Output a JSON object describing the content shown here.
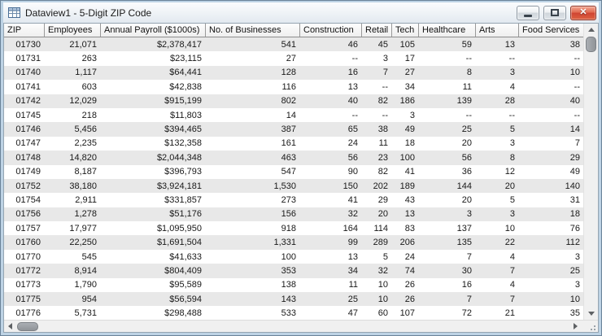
{
  "window": {
    "title": "Dataview1 - 5-Digit ZIP Code"
  },
  "table": {
    "columns": [
      "ZIP",
      "Employees",
      "Annual Payroll ($1000s)",
      "No. of Businesses",
      "Construction",
      "Retail",
      "Tech",
      "Healthcare",
      "Arts",
      "Food Services"
    ],
    "null_marker": "--",
    "rows": [
      [
        "01730",
        "21,071",
        "$2,378,417",
        "541",
        "46",
        "45",
        "105",
        "59",
        "13",
        "38"
      ],
      [
        "01731",
        "263",
        "$23,115",
        "27",
        "--",
        "3",
        "17",
        "--",
        "--",
        "--"
      ],
      [
        "01740",
        "1,117",
        "$64,441",
        "128",
        "16",
        "7",
        "27",
        "8",
        "3",
        "10"
      ],
      [
        "01741",
        "603",
        "$42,838",
        "116",
        "13",
        "--",
        "34",
        "11",
        "4",
        "--"
      ],
      [
        "01742",
        "12,029",
        "$915,199",
        "802",
        "40",
        "82",
        "186",
        "139",
        "28",
        "40"
      ],
      [
        "01745",
        "218",
        "$11,803",
        "14",
        "--",
        "--",
        "3",
        "--",
        "--",
        "--"
      ],
      [
        "01746",
        "5,456",
        "$394,465",
        "387",
        "65",
        "38",
        "49",
        "25",
        "5",
        "14"
      ],
      [
        "01747",
        "2,235",
        "$132,358",
        "161",
        "24",
        "11",
        "18",
        "20",
        "3",
        "7"
      ],
      [
        "01748",
        "14,820",
        "$2,044,348",
        "463",
        "56",
        "23",
        "100",
        "56",
        "8",
        "29"
      ],
      [
        "01749",
        "8,187",
        "$396,793",
        "547",
        "90",
        "82",
        "41",
        "36",
        "12",
        "49"
      ],
      [
        "01752",
        "38,180",
        "$3,924,181",
        "1,530",
        "150",
        "202",
        "189",
        "144",
        "20",
        "140"
      ],
      [
        "01754",
        "2,911",
        "$331,857",
        "273",
        "41",
        "29",
        "43",
        "20",
        "5",
        "31"
      ],
      [
        "01756",
        "1,278",
        "$51,176",
        "156",
        "32",
        "20",
        "13",
        "3",
        "3",
        "18"
      ],
      [
        "01757",
        "17,977",
        "$1,095,950",
        "918",
        "164",
        "114",
        "83",
        "137",
        "10",
        "76"
      ],
      [
        "01760",
        "22,250",
        "$1,691,504",
        "1,331",
        "99",
        "289",
        "206",
        "135",
        "22",
        "112"
      ],
      [
        "01770",
        "545",
        "$41,633",
        "100",
        "13",
        "5",
        "24",
        "7",
        "4",
        "3"
      ],
      [
        "01772",
        "8,914",
        "$804,409",
        "353",
        "34",
        "32",
        "74",
        "30",
        "7",
        "25"
      ],
      [
        "01773",
        "1,790",
        "$95,589",
        "138",
        "11",
        "10",
        "26",
        "16",
        "4",
        "3"
      ],
      [
        "01775",
        "954",
        "$56,594",
        "143",
        "25",
        "10",
        "26",
        "7",
        "7",
        "10"
      ],
      [
        "01776",
        "5,731",
        "$298,488",
        "533",
        "47",
        "60",
        "107",
        "72",
        "21",
        "35"
      ]
    ]
  },
  "colors": {
    "row_stripe": "#e8e8e8",
    "frame": "#bdd3e5",
    "close_button": "#cf4433",
    "scrollbar_thumb": "#909498"
  }
}
